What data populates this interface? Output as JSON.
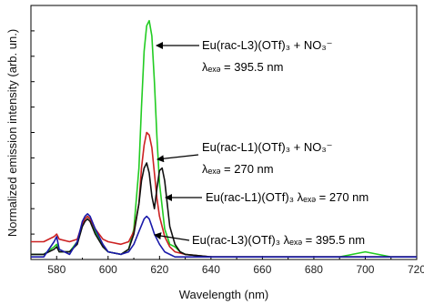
{
  "chart_data": {
    "type": "line",
    "xlabel": "Wavelength (nm)",
    "ylabel": "Normalized emission intensity (arb. un.)",
    "xlim": [
      570,
      720
    ],
    "ylim": [
      0,
      1.0
    ],
    "x_ticks": [
      "580",
      "600",
      "620",
      "640",
      "660",
      "680",
      "700",
      "720"
    ],
    "y_ticks_labeled": false,
    "grid": false,
    "legend": "none",
    "series": [
      {
        "color": "#22cc22",
        "x": [
          570,
          575,
          579,
          580,
          581,
          585,
          588,
          590,
          591,
          592,
          593,
          595,
          598,
          600,
          605,
          608,
          610,
          612,
          613,
          614,
          615,
          616,
          617,
          618,
          619,
          620,
          622,
          624,
          626,
          628,
          630,
          640,
          660,
          680,
          690,
          695,
          700,
          705,
          710,
          720
        ],
        "y": [
          0.02,
          0.02,
          0.05,
          0.06,
          0.03,
          0.03,
          0.07,
          0.14,
          0.16,
          0.17,
          0.16,
          0.11,
          0.05,
          0.03,
          0.02,
          0.04,
          0.12,
          0.36,
          0.6,
          0.82,
          0.92,
          0.94,
          0.88,
          0.7,
          0.48,
          0.3,
          0.12,
          0.06,
          0.05,
          0.03,
          0.02,
          0.01,
          0.01,
          0.01,
          0.01,
          0.02,
          0.03,
          0.02,
          0.01,
          0.01
        ]
      },
      {
        "color": "#cc2222",
        "x": [
          570,
          575,
          579,
          580,
          581,
          585,
          588,
          590,
          591,
          592,
          593,
          595,
          598,
          600,
          605,
          608,
          610,
          612,
          613,
          614,
          615,
          616,
          617,
          618,
          619,
          620,
          622,
          624,
          626,
          630,
          640,
          660,
          680,
          700,
          720
        ],
        "y": [
          0.07,
          0.07,
          0.09,
          0.1,
          0.08,
          0.07,
          0.08,
          0.14,
          0.16,
          0.17,
          0.16,
          0.12,
          0.08,
          0.07,
          0.06,
          0.07,
          0.11,
          0.22,
          0.36,
          0.45,
          0.5,
          0.49,
          0.44,
          0.34,
          0.24,
          0.17,
          0.09,
          0.05,
          0.03,
          0.02,
          0.01,
          0.01,
          0.01,
          0.01,
          0.01
        ]
      },
      {
        "color": "#111111",
        "x": [
          570,
          575,
          579,
          580,
          581,
          585,
          588,
          590,
          591,
          592,
          593,
          595,
          598,
          600,
          605,
          608,
          610,
          612,
          613,
          614,
          615,
          616,
          617,
          618,
          619,
          620,
          621,
          622,
          623,
          624,
          626,
          628,
          630,
          640,
          660,
          680,
          700,
          720
        ],
        "y": [
          0.02,
          0.02,
          0.04,
          0.05,
          0.03,
          0.03,
          0.06,
          0.13,
          0.15,
          0.16,
          0.15,
          0.1,
          0.05,
          0.03,
          0.02,
          0.04,
          0.1,
          0.22,
          0.31,
          0.36,
          0.38,
          0.34,
          0.25,
          0.2,
          0.28,
          0.35,
          0.36,
          0.31,
          0.22,
          0.13,
          0.06,
          0.03,
          0.02,
          0.01,
          0.01,
          0.01,
          0.01,
          0.01
        ]
      },
      {
        "color": "#1a1aaa",
        "x": [
          570,
          575,
          579,
          580,
          581,
          585,
          588,
          590,
          591,
          592,
          593,
          595,
          598,
          600,
          605,
          608,
          610,
          612,
          614,
          615,
          616,
          617,
          618,
          620,
          622,
          624,
          626,
          630,
          640,
          660,
          680,
          700,
          720
        ],
        "y": [
          0.01,
          0.01,
          0.07,
          0.09,
          0.04,
          0.02,
          0.07,
          0.15,
          0.17,
          0.18,
          0.17,
          0.12,
          0.06,
          0.03,
          0.02,
          0.03,
          0.06,
          0.11,
          0.16,
          0.17,
          0.16,
          0.13,
          0.1,
          0.06,
          0.03,
          0.02,
          0.01,
          0.01,
          0.01,
          0.01,
          0.01,
          0.01,
          0.01
        ]
      }
    ],
    "annotations": [
      {
        "line1": "Eu(rac-L3)(OTf)₃ + NO₃⁻",
        "line2": "λₑₓₔ = 395.5 nm"
      },
      {
        "line1": "Eu(rac-L1)(OTf)₃ + NO₃⁻",
        "line2": "λₑₓₔ = 270 nm"
      },
      {
        "line1": "Eu(rac-L1)(OTf)₃ λₑₓₔ = 270 nm",
        "line2": ""
      },
      {
        "line1": "Eu(rac-L3)(OTf)₃  λₑₓₔ = 395.5 nm",
        "line2": ""
      }
    ]
  }
}
